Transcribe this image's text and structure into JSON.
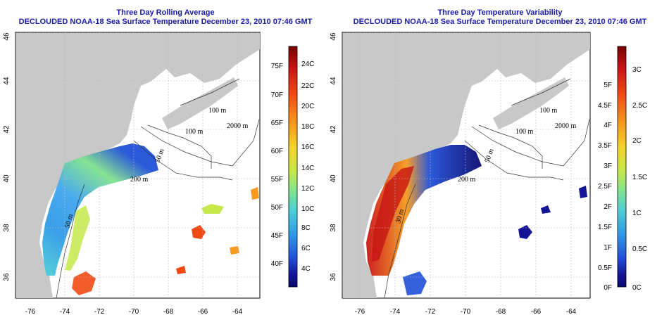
{
  "panels": [
    {
      "title": "Three Day Rolling Average",
      "subtitle": "DECLOUDED NOAA-18 Sea Surface Temperature December 23, 2010 07:46 GMT",
      "colorbar_c_labels": [
        "24C",
        "22C",
        "20C",
        "18C",
        "16C",
        "14C",
        "12C",
        "10C",
        "8C",
        "6C",
        "4C"
      ],
      "colorbar_f_labels": [
        "75F",
        "70F",
        "65F",
        "60F",
        "55F",
        "50F",
        "45F",
        "40F"
      ],
      "colors": [
        "#7a0000",
        "#c81414",
        "#f24a14",
        "#f79a1e",
        "#f5d229",
        "#c6e84a",
        "#7fe38c",
        "#4fcfd6",
        "#2f9ae8",
        "#2050d8",
        "#141496",
        "#0a0a70"
      ]
    },
    {
      "title": "Three Day Temperature Variability",
      "subtitle": "DECLOUDED NOAA-18 Sea Surface Temperature December 23, 2010 07:46 GMT",
      "colorbar_c_labels": [
        "3C",
        "2.5C",
        "2C",
        "1.5C",
        "1C",
        "0.5C",
        "0C"
      ],
      "colorbar_f_labels": [
        "5F",
        "4.5F",
        "4F",
        "3.5F",
        "3F",
        "2.5F",
        "2F",
        "1.5F",
        "1F",
        "0.5F",
        "0F"
      ],
      "colors": [
        "#7a0000",
        "#c81414",
        "#f24a14",
        "#f79a1e",
        "#f5d229",
        "#c6e84a",
        "#7fe38c",
        "#4fcfd6",
        "#2f9ae8",
        "#2050d8",
        "#141496",
        "#0a0a70"
      ]
    }
  ],
  "axes": {
    "x_ticks": [
      "-76",
      "-74",
      "-72",
      "-70",
      "-68",
      "-66",
      "-64"
    ],
    "y_ticks": [
      "36",
      "38",
      "40",
      "42",
      "44",
      "46"
    ]
  },
  "contours": {
    "labels": [
      "100 m",
      "100 m",
      "2000 m",
      "50 m",
      "200 m",
      "50 m",
      "30 m"
    ]
  },
  "colors": {
    "land": "#c8c8c8",
    "grid": "#bbbbbb",
    "title": "#1a1aa6",
    "contour": "#333333"
  }
}
